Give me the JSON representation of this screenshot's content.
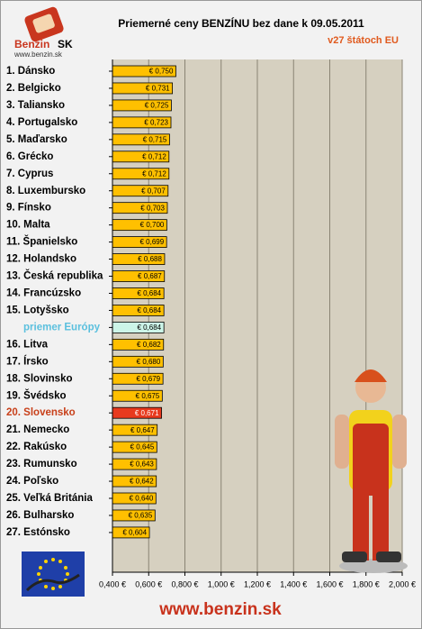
{
  "logo": {
    "name": "Benzin",
    "suffix": "SK",
    "url": "www.benzin.sk"
  },
  "footer": "www.benzin.sk",
  "chart_data": {
    "type": "barh",
    "title": "Priemerné ceny BENZÍNU bez dane k 09.05.2011",
    "subtitle": "v27 štátoch EU",
    "categories": [
      "1. Dánsko",
      "2. Belgicko",
      "3. Taliansko",
      "4. Portugalsko",
      "5. Maďarsko",
      "6. Grécko",
      "7. Cyprus",
      "8. Luxembursko",
      "9. Fínsko",
      "10. Malta",
      "11. Španielsko",
      "12. Holandsko",
      "13. Česká republika",
      "14. Francúzsko",
      "15. Lotyšsko",
      "priemer Európy",
      "16. Litva",
      "17. Írsko",
      "18. Slovinsko",
      "19. Švédsko",
      "20. Slovensko",
      "21. Nemecko",
      "22. Rakúsko",
      "23. Rumunsko",
      "24. Poľsko",
      "25. Veľká Británia",
      "26. Bulharsko",
      "27. Estónsko"
    ],
    "values": [
      0.75,
      0.731,
      0.725,
      0.723,
      0.715,
      0.712,
      0.712,
      0.707,
      0.703,
      0.7,
      0.699,
      0.688,
      0.687,
      0.684,
      0.684,
      0.684,
      0.682,
      0.68,
      0.679,
      0.675,
      0.671,
      0.647,
      0.645,
      0.643,
      0.642,
      0.64,
      0.635,
      0.604
    ],
    "value_labels": [
      "€ 0,750",
      "€ 0,731",
      "€ 0,725",
      "€ 0,723",
      "€ 0,715",
      "€ 0,712",
      "€ 0,712",
      "€ 0,707",
      "€ 0,703",
      "€ 0,700",
      "€ 0,699",
      "€ 0,688",
      "€ 0,687",
      "€ 0,684",
      "€ 0,684",
      "€ 0,684",
      "€ 0,682",
      "€ 0,680",
      "€ 0,679",
      "€ 0,675",
      "€ 0,671",
      "€ 0,647",
      "€ 0,645",
      "€ 0,643",
      "€ 0,642",
      "€ 0,640",
      "€ 0,635",
      "€ 0,604"
    ],
    "colors": [
      "#ffc000",
      "#ffc000",
      "#ffc000",
      "#ffc000",
      "#ffc000",
      "#ffc000",
      "#ffc000",
      "#ffc000",
      "#ffc000",
      "#ffc000",
      "#ffc000",
      "#ffc000",
      "#ffc000",
      "#ffc000",
      "#ffc000",
      "#ccf5e8",
      "#ffc000",
      "#ffc000",
      "#ffc000",
      "#ffc000",
      "#e83a1e",
      "#ffc000",
      "#ffc000",
      "#ffc000",
      "#ffc000",
      "#ffc000",
      "#ffc000",
      "#ffc000"
    ],
    "label_colors": [
      "#000000",
      "#000000",
      "#000000",
      "#000000",
      "#000000",
      "#000000",
      "#000000",
      "#000000",
      "#000000",
      "#000000",
      "#000000",
      "#000000",
      "#000000",
      "#000000",
      "#000000",
      "#5bc0de",
      "#000000",
      "#000000",
      "#000000",
      "#000000",
      "#c8401a",
      "#000000",
      "#000000",
      "#000000",
      "#000000",
      "#000000",
      "#000000",
      "#000000"
    ],
    "xlim": [
      0.4,
      2.0
    ],
    "xticks": [
      {
        "value": 0.4,
        "label": "0,400 €"
      },
      {
        "value": 0.6,
        "label": "0,600 €"
      },
      {
        "value": 0.8,
        "label": "0,800 €"
      },
      {
        "value": 1.0,
        "label": "1,000 €"
      },
      {
        "value": 1.2,
        "label": "1,200 €"
      },
      {
        "value": 1.4,
        "label": "1,400 €"
      },
      {
        "value": 1.6,
        "label": "1,600 €"
      },
      {
        "value": 1.8,
        "label": "1,800 €"
      },
      {
        "value": 2.0,
        "label": "2,000 €"
      }
    ],
    "grid": true
  }
}
